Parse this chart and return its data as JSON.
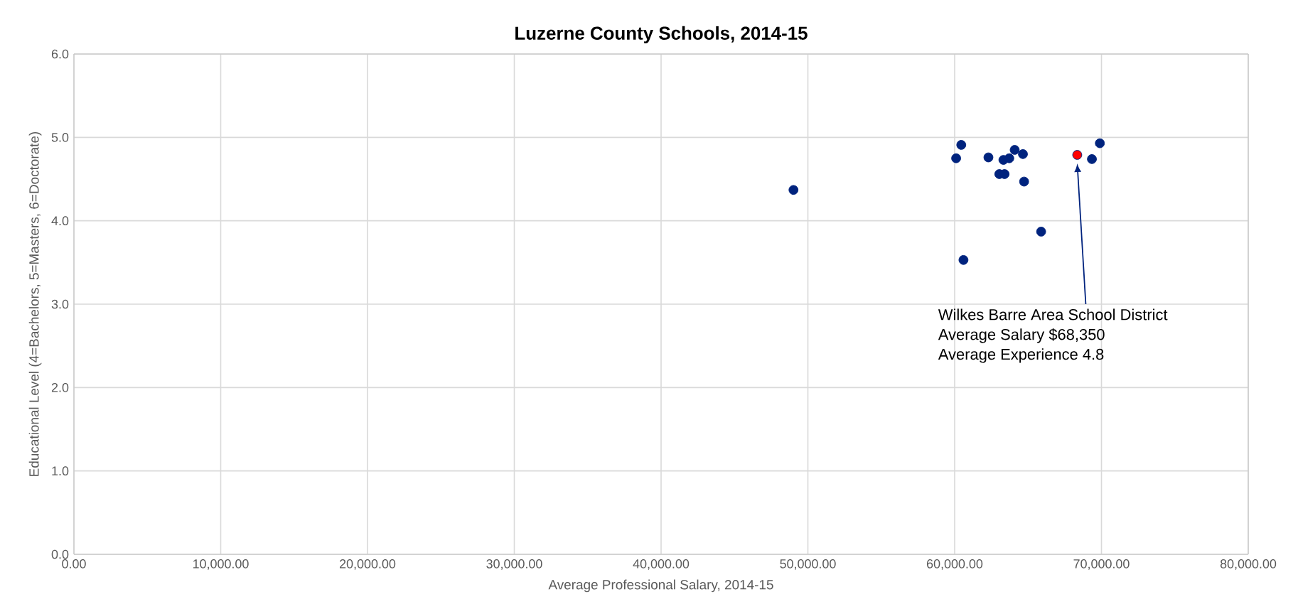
{
  "chart_data": {
    "type": "scatter",
    "title": "Luzerne County Schools, 2014-15",
    "xlabel": "Average Professional Salary, 2014-15",
    "ylabel": "Educational Level (4=Bachelors, 5=Masters, 6=Doctorate)",
    "series": [
      {
        "color": "#00237e",
        "x": [
          49020,
          60450,
          60100,
          62300,
          63320,
          63720,
          64090,
          64650,
          63040,
          63400,
          64730,
          65890,
          60600,
          69350,
          69890
        ],
        "values": [
          4.37,
          4.91,
          4.75,
          4.76,
          4.73,
          4.75,
          4.85,
          4.8,
          4.56,
          4.56,
          4.47,
          3.87,
          3.53,
          4.74,
          4.93
        ]
      },
      {
        "color": "#ff0000",
        "x": [
          68350
        ],
        "values": [
          4.79
        ]
      }
    ],
    "xlim": [
      0,
      80000
    ],
    "ylim": [
      0,
      6
    ],
    "xticks": [
      {
        "value": 0,
        "label": "0.00"
      },
      {
        "value": 10000,
        "label": "10,000.00"
      },
      {
        "value": 20000,
        "label": "20,000.00"
      },
      {
        "value": 30000,
        "label": "30,000.00"
      },
      {
        "value": 40000,
        "label": "40,000.00"
      },
      {
        "value": 50000,
        "label": "50,000.00"
      },
      {
        "value": 60000,
        "label": "60,000.00"
      },
      {
        "value": 70000,
        "label": "70,000.00"
      },
      {
        "value": 80000,
        "label": "80,000.00"
      }
    ],
    "yticks": [
      {
        "value": 0,
        "label": "0.0"
      },
      {
        "value": 1,
        "label": "1.0"
      },
      {
        "value": 2,
        "label": "2.0"
      },
      {
        "value": 3,
        "label": "3.0"
      },
      {
        "value": 4,
        "label": "4.0"
      },
      {
        "value": 5,
        "label": "5.0"
      },
      {
        "value": 6,
        "label": "6.0"
      }
    ],
    "annotations": [
      "Wilkes Barre Area School District",
      "Average Salary $68,350",
      "Average Experience 4.8"
    ],
    "grid": true,
    "marker": "circle"
  }
}
